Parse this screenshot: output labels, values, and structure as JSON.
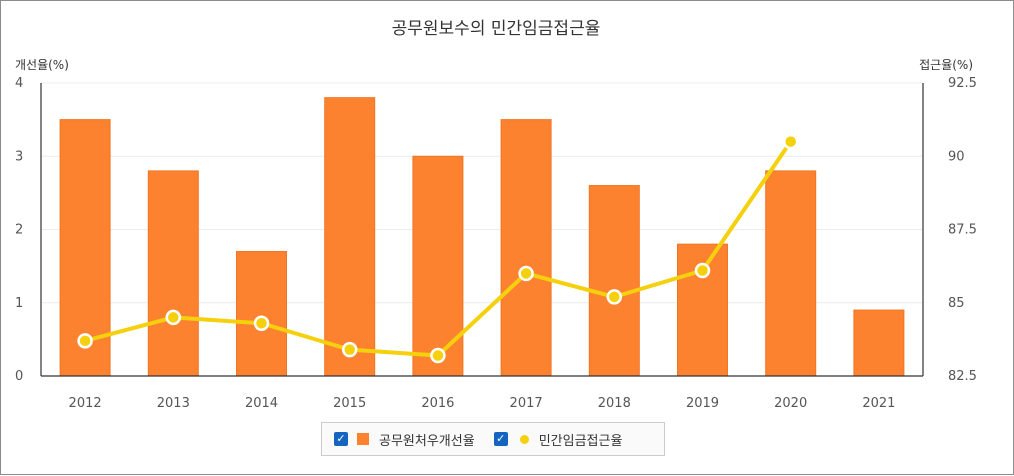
{
  "chart_data": {
    "type": "bar+line",
    "title": "공무원보수의 민간임금접근율",
    "left_axis_label": "개선율(%)",
    "right_axis_label": "접근율(%)",
    "categories": [
      "2012",
      "2013",
      "2014",
      "2015",
      "2016",
      "2017",
      "2018",
      "2019",
      "2020",
      "2021"
    ],
    "left_ylim": [
      0,
      4
    ],
    "left_ticks": [
      "0",
      "1",
      "2",
      "3",
      "4"
    ],
    "right_ylim": [
      82.5,
      92.5
    ],
    "right_ticks": [
      "82.5",
      "85",
      "87.5",
      "90",
      "92.5"
    ],
    "grid": true,
    "series": [
      {
        "name": "공무원처우개선율",
        "type": "bar",
        "axis": "left",
        "color": "#fd8230",
        "values": [
          3.5,
          2.8,
          1.7,
          3.8,
          3.0,
          3.5,
          2.6,
          1.8,
          2.8,
          0.9
        ]
      },
      {
        "name": "민간임금접근율",
        "type": "line",
        "axis": "right",
        "color": "#f5d00c",
        "values": [
          83.7,
          84.5,
          84.3,
          83.4,
          83.2,
          86.0,
          85.2,
          86.1,
          90.5,
          null
        ]
      }
    ],
    "legend_position": "bottom-center"
  },
  "legend": {
    "checkbox_glyph": "✓"
  }
}
